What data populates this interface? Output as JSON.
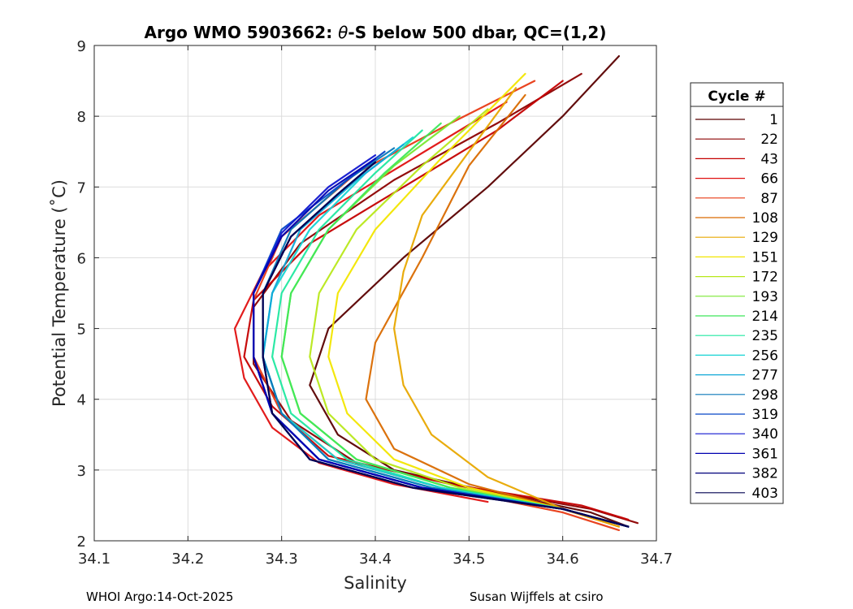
{
  "chart_data": {
    "type": "line",
    "title_prefix": "Argo WMO 5903662: ",
    "title_symbol": "θ",
    "title_suffix": "-S below 500 dbar,  QC=(1,2)",
    "xlabel": "Salinity",
    "ylabel": "Potential Temperature (˚C)",
    "xlim": [
      34.1,
      34.7
    ],
    "ylim": [
      2,
      9
    ],
    "x_ticks": [
      "34.1",
      "34.2",
      "34.3",
      "34.4",
      "34.5",
      "34.6",
      "34.7"
    ],
    "y_ticks": [
      "2",
      "3",
      "4",
      "5",
      "6",
      "7",
      "8",
      "9"
    ],
    "grid": true,
    "legend_title": "Cycle #",
    "legend_position": "right",
    "legend": [
      {
        "label": "1",
        "color": "#5a0000"
      },
      {
        "label": "22",
        "color": "#8c0000"
      },
      {
        "label": "43",
        "color": "#c40000"
      },
      {
        "label": "66",
        "color": "#e01010"
      },
      {
        "label": "87",
        "color": "#e83a14"
      },
      {
        "label": "108",
        "color": "#d96a00"
      },
      {
        "label": "129",
        "color": "#e8a800"
      },
      {
        "label": "151",
        "color": "#f2e600"
      },
      {
        "label": "172",
        "color": "#b8e81a"
      },
      {
        "label": "193",
        "color": "#7ae830"
      },
      {
        "label": "214",
        "color": "#3ee85a"
      },
      {
        "label": "235",
        "color": "#20e8a0"
      },
      {
        "label": "256",
        "color": "#16d4d4"
      },
      {
        "label": "277",
        "color": "#10a8d8"
      },
      {
        "label": "298",
        "color": "#0a78b8"
      },
      {
        "label": "319",
        "color": "#0646c8"
      },
      {
        "label": "340",
        "color": "#1016d0"
      },
      {
        "label": "361",
        "color": "#0000b0"
      },
      {
        "label": "382",
        "color": "#00007a"
      },
      {
        "label": "403",
        "color": "#000050"
      }
    ],
    "series": [
      {
        "name": "1",
        "color": "#5a0000",
        "x": [
          34.67,
          34.63,
          34.52,
          34.42,
          34.36,
          34.33,
          34.35,
          34.43,
          34.52,
          34.6,
          34.66
        ],
        "y": [
          2.2,
          2.4,
          2.7,
          3.0,
          3.5,
          4.2,
          5.0,
          6.0,
          7.0,
          8.0,
          8.85
        ]
      },
      {
        "name": "22",
        "color": "#8c0000",
        "x": [
          34.68,
          34.63,
          34.5,
          34.38,
          34.31,
          34.27,
          34.27,
          34.32,
          34.42,
          34.53,
          34.62
        ],
        "y": [
          2.25,
          2.45,
          2.75,
          3.1,
          3.7,
          4.5,
          5.3,
          6.2,
          7.1,
          7.9,
          8.6
        ]
      },
      {
        "name": "43",
        "color": "#c40000",
        "x": [
          34.67,
          34.62,
          34.48,
          34.35,
          34.29,
          34.26,
          34.27,
          34.33,
          34.43,
          34.53,
          34.6
        ],
        "y": [
          2.3,
          2.5,
          2.8,
          3.2,
          3.9,
          4.6,
          5.4,
          6.2,
          7.0,
          7.8,
          8.5
        ]
      },
      {
        "name": "66",
        "color": "#e01010",
        "x": [
          34.52,
          34.42,
          34.34,
          34.29,
          34.26,
          34.25,
          34.28,
          34.34,
          34.44,
          34.54
        ],
        "y": [
          2.55,
          2.8,
          3.1,
          3.6,
          4.3,
          5.0,
          5.8,
          6.6,
          7.4,
          8.2
        ]
      },
      {
        "name": "87",
        "color": "#e83a14",
        "x": [
          34.66,
          34.6,
          34.47,
          34.36,
          34.3,
          34.27,
          34.27,
          34.3,
          34.38,
          34.48,
          34.57
        ],
        "y": [
          2.15,
          2.4,
          2.75,
          3.15,
          3.8,
          4.6,
          5.4,
          6.3,
          7.2,
          7.9,
          8.5
        ]
      },
      {
        "name": "108",
        "color": "#d96a00",
        "x": [
          34.66,
          34.6,
          34.5,
          34.42,
          34.39,
          34.4,
          34.45,
          34.5,
          34.56
        ],
        "y": [
          2.2,
          2.45,
          2.8,
          3.3,
          4.0,
          4.8,
          6.0,
          7.3,
          8.3
        ]
      },
      {
        "name": "129",
        "color": "#e8a800",
        "x": [
          34.66,
          34.6,
          34.52,
          34.46,
          34.43,
          34.42,
          34.43,
          34.45,
          34.5,
          34.55
        ],
        "y": [
          2.2,
          2.45,
          2.9,
          3.5,
          4.2,
          5.0,
          5.8,
          6.6,
          7.5,
          8.4
        ]
      },
      {
        "name": "151",
        "color": "#f2e600",
        "x": [
          34.67,
          34.6,
          34.5,
          34.42,
          34.37,
          34.35,
          34.36,
          34.4,
          34.47,
          34.56
        ],
        "y": [
          2.2,
          2.45,
          2.75,
          3.15,
          3.8,
          4.6,
          5.5,
          6.4,
          7.4,
          8.6
        ]
      },
      {
        "name": "172",
        "color": "#b8e81a",
        "x": [
          34.67,
          34.6,
          34.49,
          34.4,
          34.35,
          34.33,
          34.34,
          34.38,
          34.45,
          34.52
        ],
        "y": [
          2.2,
          2.45,
          2.75,
          3.15,
          3.8,
          4.6,
          5.5,
          6.4,
          7.3,
          8.1
        ]
      },
      {
        "name": "193",
        "color": "#7ae830",
        "x": [
          34.67,
          34.6,
          34.48,
          34.38,
          34.32,
          34.3,
          34.31,
          34.35,
          34.42,
          34.49
        ],
        "y": [
          2.2,
          2.45,
          2.75,
          3.15,
          3.8,
          4.6,
          5.5,
          6.4,
          7.3,
          8.0
        ]
      },
      {
        "name": "214",
        "color": "#3ee85a",
        "x": [
          34.67,
          34.6,
          34.48,
          34.38,
          34.32,
          34.3,
          34.31,
          34.35,
          34.41,
          34.47
        ],
        "y": [
          2.2,
          2.45,
          2.75,
          3.15,
          3.8,
          4.6,
          5.5,
          6.4,
          7.2,
          7.9
        ]
      },
      {
        "name": "235",
        "color": "#20e8a0",
        "x": [
          34.67,
          34.6,
          34.47,
          34.37,
          34.31,
          34.29,
          34.3,
          34.34,
          34.4,
          34.45
        ],
        "y": [
          2.2,
          2.45,
          2.75,
          3.15,
          3.8,
          4.6,
          5.5,
          6.4,
          7.2,
          7.8
        ]
      },
      {
        "name": "256",
        "color": "#16d4d4",
        "x": [
          34.67,
          34.6,
          34.47,
          34.36,
          34.3,
          34.28,
          34.29,
          34.33,
          34.39,
          34.44
        ],
        "y": [
          2.2,
          2.45,
          2.75,
          3.15,
          3.8,
          4.6,
          5.5,
          6.4,
          7.2,
          7.7
        ]
      },
      {
        "name": "277",
        "color": "#10a8d8",
        "x": [
          34.67,
          34.6,
          34.46,
          34.35,
          34.3,
          34.28,
          34.29,
          34.32,
          34.38,
          34.43
        ],
        "y": [
          2.2,
          2.45,
          2.75,
          3.15,
          3.8,
          4.6,
          5.5,
          6.4,
          7.1,
          7.6
        ]
      },
      {
        "name": "298",
        "color": "#0a78b8",
        "x": [
          34.67,
          34.6,
          34.46,
          34.35,
          34.3,
          34.28,
          34.28,
          34.31,
          34.37,
          34.42
        ],
        "y": [
          2.2,
          2.45,
          2.75,
          3.15,
          3.8,
          4.6,
          5.5,
          6.4,
          7.1,
          7.55
        ]
      },
      {
        "name": "319",
        "color": "#0646c8",
        "x": [
          34.67,
          34.6,
          34.45,
          34.34,
          34.29,
          34.27,
          34.27,
          34.3,
          34.36,
          34.41
        ],
        "y": [
          2.2,
          2.45,
          2.75,
          3.15,
          3.8,
          4.6,
          5.5,
          6.4,
          7.0,
          7.5
        ]
      },
      {
        "name": "340",
        "color": "#1016d0",
        "x": [
          34.67,
          34.6,
          34.45,
          34.34,
          34.29,
          34.27,
          34.27,
          34.3,
          34.35,
          34.4
        ],
        "y": [
          2.2,
          2.45,
          2.75,
          3.15,
          3.8,
          4.6,
          5.5,
          6.35,
          7.0,
          7.45
        ]
      },
      {
        "name": "361",
        "color": "#0000b0",
        "x": [
          34.67,
          34.6,
          34.45,
          34.34,
          34.29,
          34.27,
          34.27,
          34.3,
          34.35,
          34.4
        ],
        "y": [
          2.2,
          2.45,
          2.75,
          3.15,
          3.8,
          4.6,
          5.5,
          6.3,
          6.95,
          7.4
        ]
      },
      {
        "name": "382",
        "color": "#00007a",
        "x": [
          34.67,
          34.6,
          34.44,
          34.33,
          34.29,
          34.28,
          34.28,
          34.31,
          34.36,
          34.4
        ],
        "y": [
          2.2,
          2.45,
          2.75,
          3.15,
          3.8,
          4.6,
          5.5,
          6.3,
          6.9,
          7.35
        ]
      },
      {
        "name": "403",
        "color": "#000050",
        "x": [
          34.67,
          34.6,
          34.44,
          34.33,
          34.29,
          34.28,
          34.28,
          34.31,
          34.36,
          34.4
        ],
        "y": [
          2.2,
          2.45,
          2.75,
          3.15,
          3.8,
          4.6,
          5.5,
          6.3,
          6.9,
          7.35
        ]
      }
    ]
  },
  "footer": {
    "left": "WHOI Argo:14-Oct-2025",
    "right": "Susan Wijffels at csiro"
  }
}
